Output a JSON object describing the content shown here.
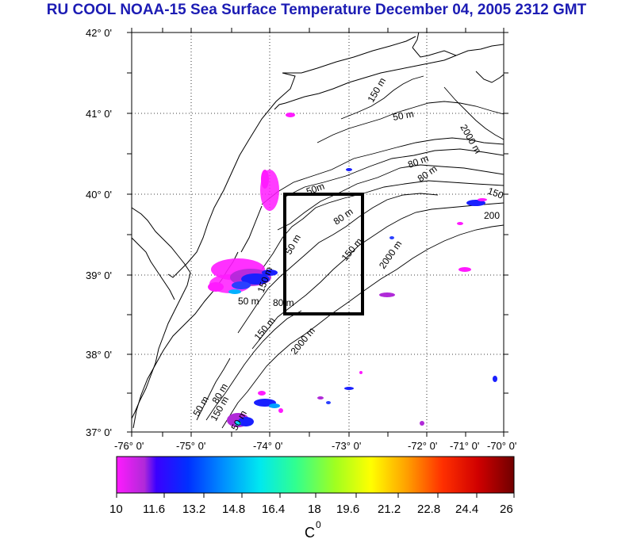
{
  "title": "RU COOL  NOAA-15 Sea Surface Temperature December 04, 2005 2312 GMT",
  "lat_labels": [
    "42° 0'",
    "41° 0'",
    "40° 0'",
    "39° 0'",
    "38° 0'",
    "37° 0'"
  ],
  "lon_labels": [
    "-76° 0'",
    "-75° 0'",
    "-74° 0'",
    "-73° 0'",
    "-72° 0'",
    "-71° 0'",
    "-70° 0'"
  ],
  "contour_labels": [
    "50 m",
    "80 m",
    "150 m",
    "2000 m",
    "200",
    "150",
    "50m",
    "80 m",
    "50 m",
    "80 m",
    "150 m",
    "2000 m",
    "50 m",
    "80 m",
    "150 m",
    "150 m",
    "2000 m",
    "80 m",
    "50 m",
    "150 m",
    "50 m"
  ],
  "colorbar": {
    "ticks": [
      "10",
      "11.6",
      "13.2",
      "14.8",
      "16.4",
      "18",
      "19.6",
      "21.2",
      "22.8",
      "24.4",
      "26"
    ],
    "unit": "C",
    "unit_superscript": "0"
  },
  "colors": {
    "title": "#1c1cb4",
    "box": "#000000",
    "scale": [
      "#ff00ff",
      "#9a29d6",
      "#0000ff",
      "#0070ff",
      "#00e0ff",
      "#00ff90",
      "#80ff20",
      "#ffff00",
      "#ff9000",
      "#ff2000",
      "#d00000",
      "#800000"
    ]
  }
}
